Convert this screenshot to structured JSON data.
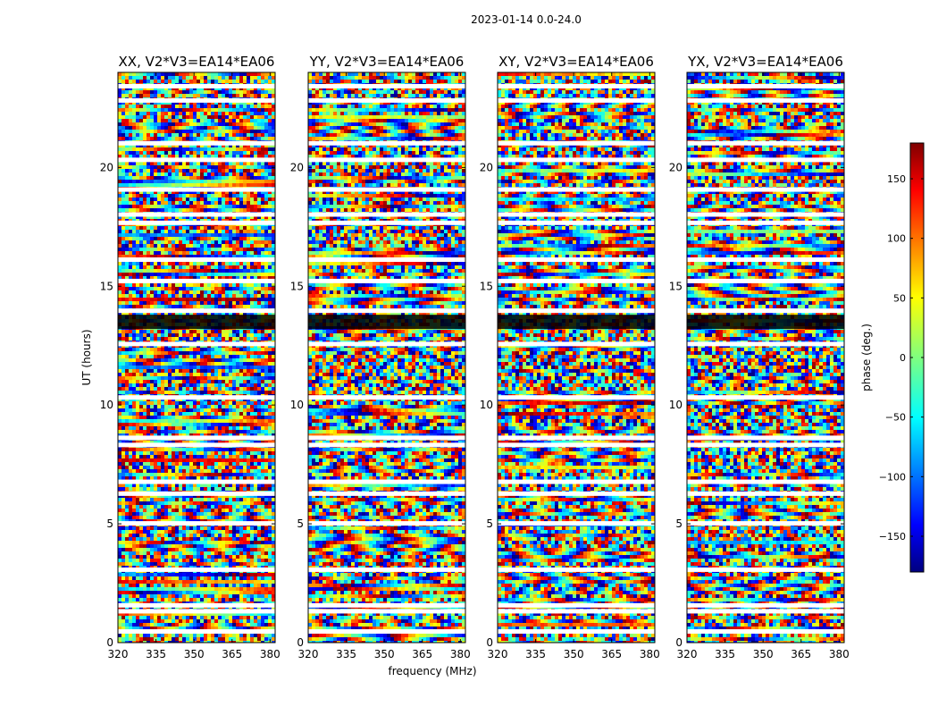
{
  "figure_title": "2023-01-14 0.0-24.0",
  "xlabel": "frequency (MHz)",
  "ylabel": "UT (hours)",
  "chart_data": {
    "type": "heatmap",
    "title": "2023-01-14 0.0-24.0",
    "xlabel": "frequency (MHz)",
    "ylabel": "UT (hours)",
    "xlim": [
      320,
      382
    ],
    "ylim": [
      0,
      24
    ],
    "xticks": [
      320,
      335,
      350,
      365,
      380
    ],
    "yticks": [
      0,
      5,
      10,
      15,
      20
    ],
    "panels": [
      {
        "name": "XX",
        "title": "XX, V2*V3=EA14*EA06"
      },
      {
        "name": "YY",
        "title": "YY, V2*V3=EA14*EA06"
      },
      {
        "name": "XY",
        "title": "XY, V2*V3=EA14*EA06"
      },
      {
        "name": "YX",
        "title": "YX, V2*V3=EA14*EA06"
      }
    ],
    "colorbar": {
      "label": "phase (deg.)",
      "range": [
        -180,
        180
      ],
      "ticks": [
        -150,
        -100,
        -50,
        0,
        50,
        100,
        150
      ],
      "colormap": "jet"
    },
    "gaps_ut_hours": [
      0.45,
      1.3,
      1.55,
      3.05,
      5.0,
      6.25,
      6.75,
      8.3,
      8.6,
      10.3,
      12.55,
      13.95,
      15.2,
      16.1,
      17.65,
      18.0,
      19.05,
      20.3,
      21.0,
      22.8,
      23.4
    ]
  }
}
